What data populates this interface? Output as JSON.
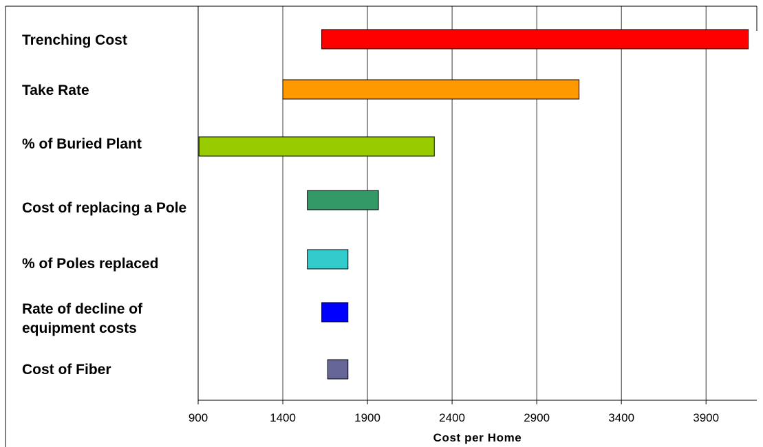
{
  "chart_data": {
    "type": "bar",
    "orientation": "horizontal",
    "xlabel": "Cost per Home",
    "xlim": [
      900,
      4200
    ],
    "xticks": [
      900,
      1400,
      1900,
      2400,
      2900,
      3400,
      3900
    ],
    "grid": "vertical",
    "legend": "none",
    "categories": [
      "Trenching Cost",
      "Take Rate",
      "% of Buried Plant",
      "Cost of replacing a Pole",
      "% of Poles replaced",
      "Rate of decline of equipment costs",
      "Cost of Fiber"
    ],
    "ranges": [
      [
        1630,
        4150
      ],
      [
        1400,
        3150
      ],
      [
        905,
        2295
      ],
      [
        1545,
        1965
      ],
      [
        1545,
        1785
      ],
      [
        1630,
        1785
      ],
      [
        1665,
        1785
      ]
    ],
    "colors": [
      "#ff0000",
      "#ff9900",
      "#99cc00",
      "#339966",
      "#33cccc",
      "#0000ff",
      "#666699"
    ]
  }
}
